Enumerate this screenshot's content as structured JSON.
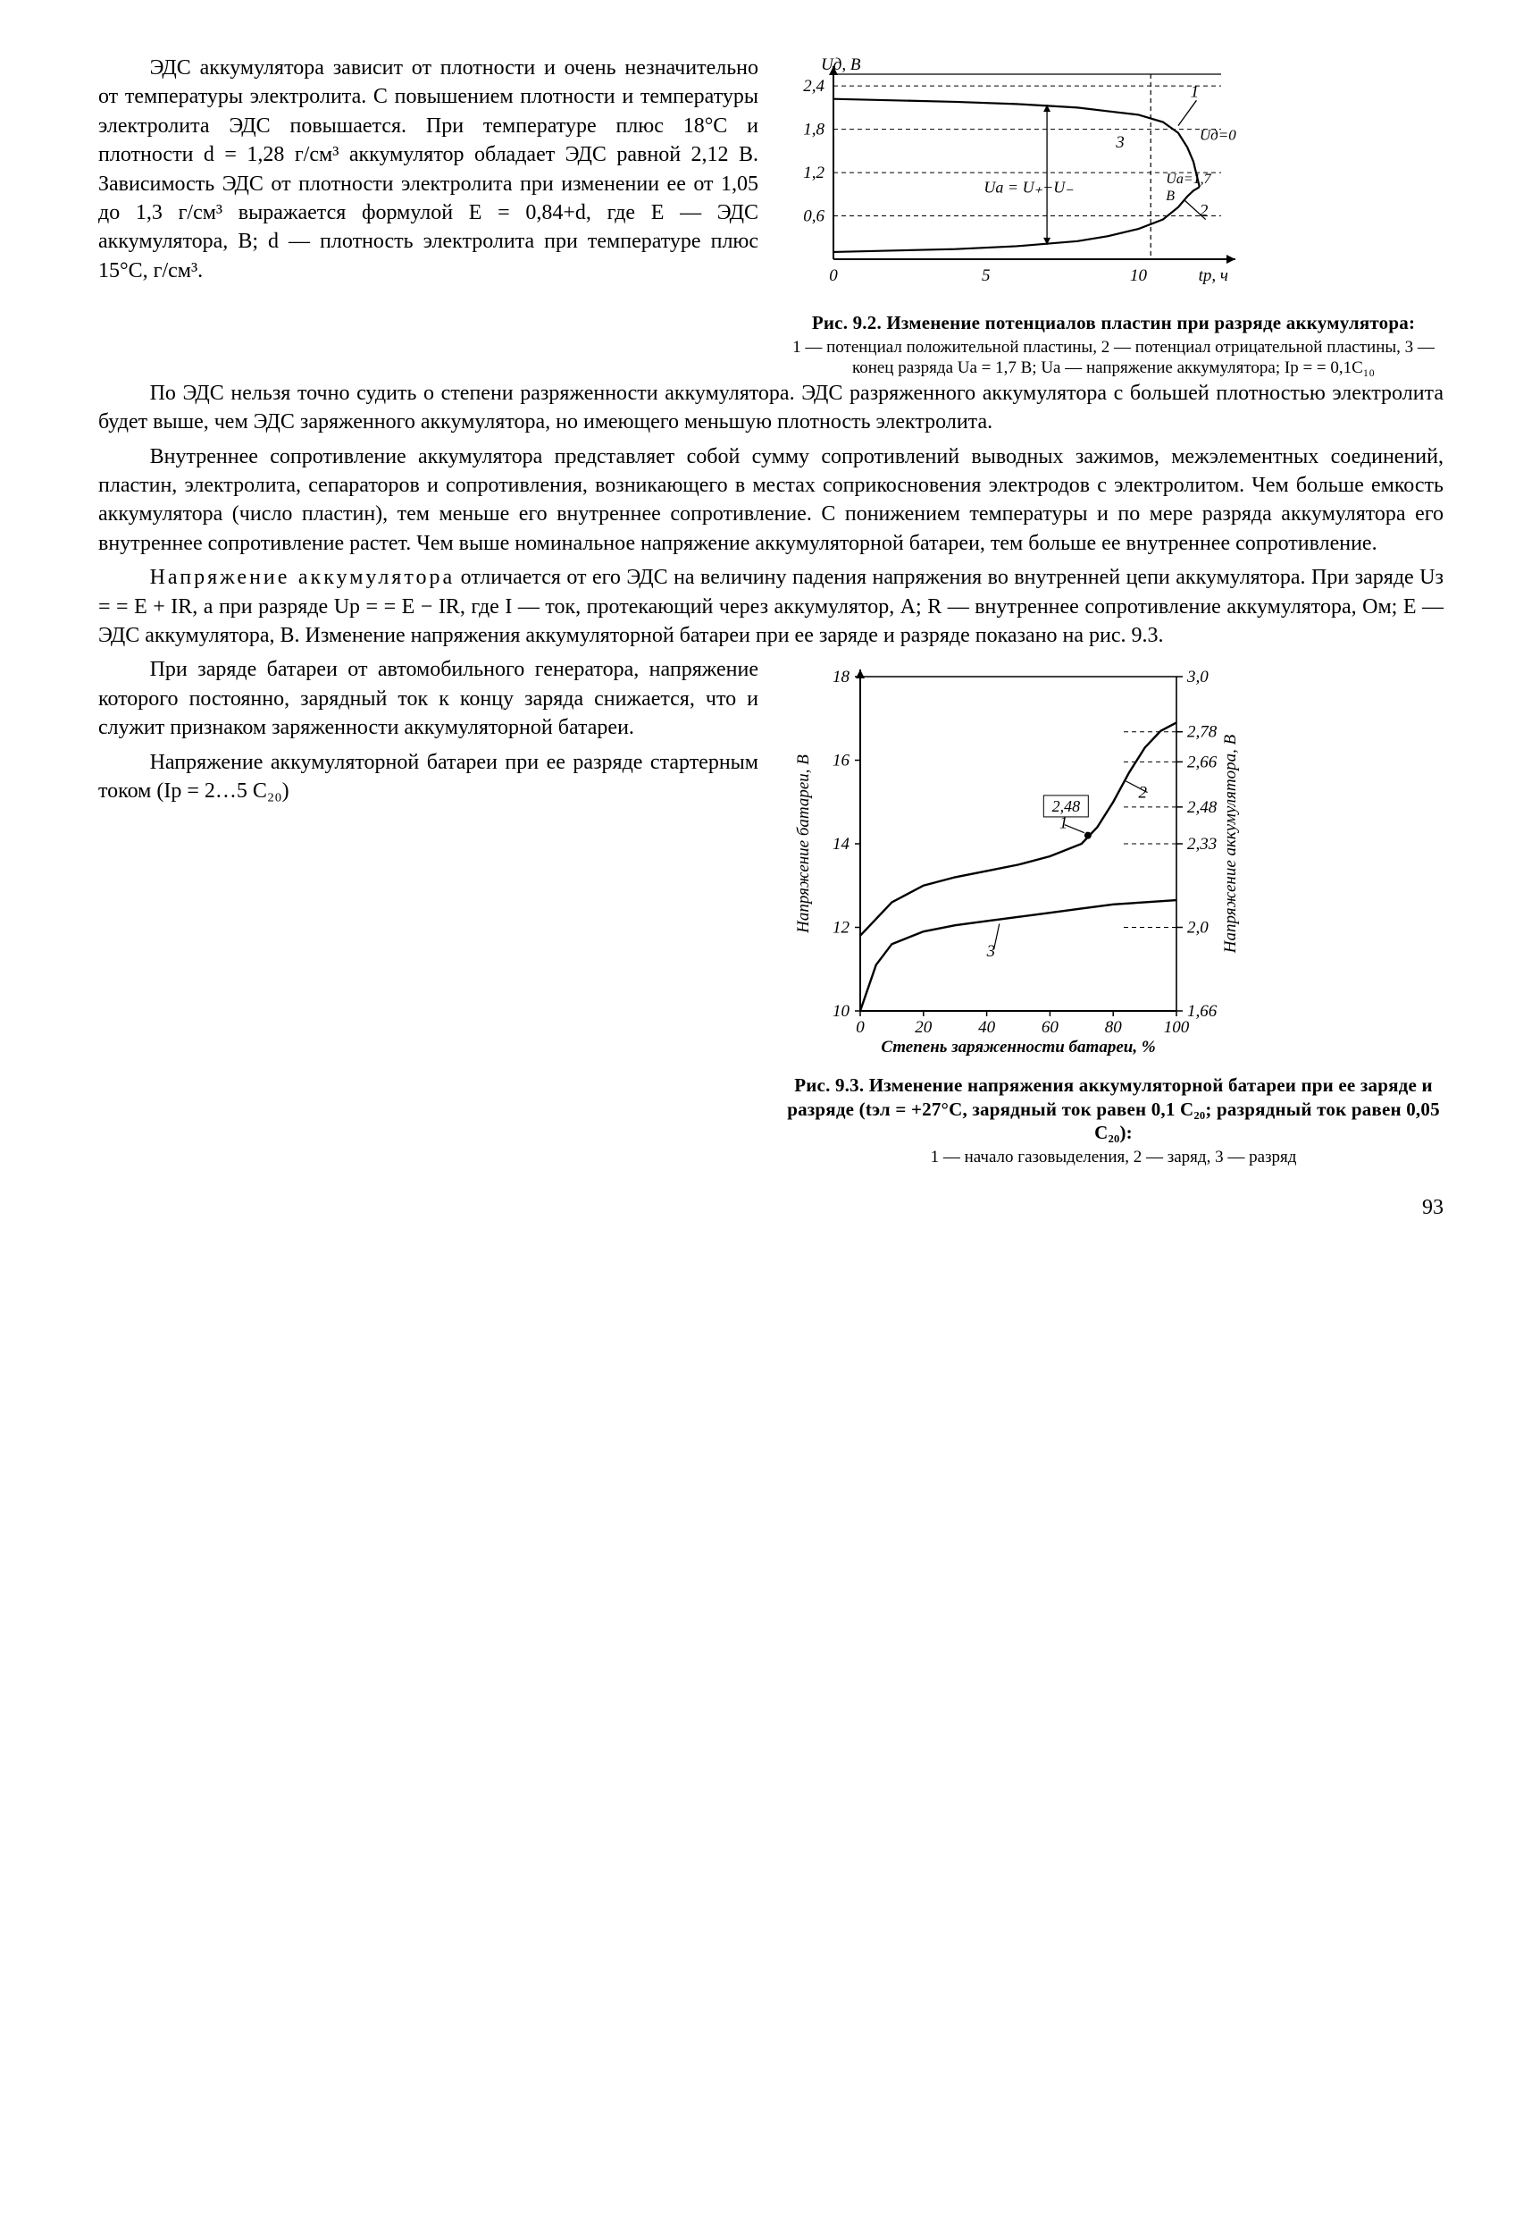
{
  "page_number": "93",
  "text": {
    "p1": "ЭДС аккумулятора зависит от плотности и очень незначительно от температуры электролита. С повышением плотности и тем­пературы электролита ЭДС по­вышается. При температуре плюс 18°С и плотности d = 1,28 г/см³ аккумулятор обладает ЭДС рав­ной 2,12 В. Зависимость ЭДС от плотности электролита при изме­нении ее от 1,05 до 1,3 г/см³ вы­ражается формулой E = 0,84+d, где E — ЭДС аккумулятора, В; d — плотность электролита при температуре плюс 15°С, г/см³.",
    "p2": "По ЭДС нельзя точно судить о степени разряженности ак­кумулятора. ЭДС разряженного аккумулятора с большей плот­ностью электролита будет выше, чем ЭДС заряженного акку­мулятора, но имеющего меньшую плотность электролита.",
    "p3": "Внутреннее сопротивление аккумулятора представляет собой сумму сопротивлений выводных зажимов, межэлементных соеди­нений, пластин, электролита, сепараторов и сопротивления, воз­никающего в местах соприкосновения электродов с электро­литом. Чем больше емкость аккумулятора (число пластин), тем меньше его внутреннее сопротивление. С понижением темпера­туры и по мере разряда аккумулятора его внутреннее сопротив­ление растет. Чем выше номинальное напряжение аккумулятор­ной батареи, тем больше ее внутреннее сопротивление.",
    "p4a": "Напряжение аккумулятора",
    "p4b": " отличается от его ЭДС на величину падения напряжения во внутренней цепи ак­кумулятора. При заряде Uз = = E + IR, а при разряде Uр = = E − IR, где I — ток, протекаю­щий через аккумулятор, А; R — внутреннее сопротивление акку­мулятора, Ом; E — ЭДС аккуму­лятора, В. Изменение напряже­ния аккумуляторной батареи при ее заряде и разряде показано на рис. 9.3.",
    "p5": "При заряде батареи от авто­мобильного генератора, напряже­ние которого постоянно, зарядный ток к концу заряда снижается, что и служит признаком заряжен­ности аккумуляторной батареи.",
    "p6": "Напряжение аккумуляторной батареи при ее разряде стар­терным током (Iр = 2…5 C₂₀)"
  },
  "fig92": {
    "title": "Рис. 9.2. Изменение потенциалов пластин при разряде аккумулятора:",
    "legend": "1 — потенциал положительной пласти­ны, 2 — потенциал отрицательной пла­стины, 3 — конец разряда Uа = 1,7 В; Uа — напряжение аккумулятора; Iр = = 0,1C₁₀",
    "y_axis_label": "Uд, В",
    "x_axis_label": "tр, ч",
    "y_ticks": [
      "0,6",
      "1,2",
      "1,8",
      "2,4"
    ],
    "x_ticks": [
      "0",
      "5",
      "10"
    ],
    "annotations": {
      "ua_eq": "Uа = U₊−U₋",
      "ua_zero": "Uд = 0",
      "ua_mark": "Uа=1,7В"
    },
    "curve_colors": {
      "line": "#000000",
      "bg": "#ffffff"
    },
    "curve1": [
      [
        0,
        2.22
      ],
      [
        2,
        2.2
      ],
      [
        4,
        2.18
      ],
      [
        6,
        2.15
      ],
      [
        8,
        2.1
      ],
      [
        9,
        2.05
      ],
      [
        10,
        2.0
      ],
      [
        10.8,
        1.9
      ],
      [
        11.3,
        1.75
      ],
      [
        11.6,
        1.55
      ],
      [
        11.8,
        1.35
      ],
      [
        12.0,
        1.0
      ]
    ],
    "curve2": [
      [
        0,
        0.1
      ],
      [
        2,
        0.12
      ],
      [
        4,
        0.14
      ],
      [
        6,
        0.18
      ],
      [
        8,
        0.25
      ],
      [
        9,
        0.32
      ],
      [
        10,
        0.42
      ],
      [
        10.8,
        0.55
      ],
      [
        11.3,
        0.72
      ],
      [
        11.6,
        0.87
      ],
      [
        11.8,
        0.95
      ],
      [
        12.0,
        1.0
      ]
    ],
    "xlim": [
      0,
      13
    ],
    "ylim": [
      0,
      2.6
    ],
    "line_width": 2.2,
    "dash_pattern": "5 4",
    "font_size": 19
  },
  "fig93": {
    "title": "Рис. 9.3. Изменение напряжения аккумуляторной батареи при ее заряде и разряде (tэл = +27°С, зарядный ток равен 0,1 C₂₀; разряд­ный ток равен 0,05 C₂₀):",
    "legend": "1 — начало газовыделения, 2 — заряд, 3 — разряд",
    "x_label": "Степень заряженности батареи, %",
    "y_left_label": "Напряжение батареи, В",
    "y_right_label": "Напряжение аккумулятора, В",
    "x_ticks": [
      "0",
      "20",
      "40",
      "60",
      "80",
      "100"
    ],
    "y_left_ticks": [
      "10",
      "12",
      "14",
      "16",
      "18"
    ],
    "y_right_vals": [
      "1,66",
      "2,0",
      "2,33",
      "2,48",
      "2,66",
      "2,78",
      "3,0"
    ],
    "curve_charge": [
      [
        0,
        11.8
      ],
      [
        10,
        12.6
      ],
      [
        20,
        13.0
      ],
      [
        30,
        13.2
      ],
      [
        40,
        13.35
      ],
      [
        50,
        13.5
      ],
      [
        60,
        13.7
      ],
      [
        70,
        14.0
      ],
      [
        75,
        14.4
      ],
      [
        80,
        15.0
      ],
      [
        85,
        15.7
      ],
      [
        90,
        16.3
      ],
      [
        95,
        16.7
      ],
      [
        100,
        16.9
      ]
    ],
    "curve_discharge": [
      [
        0,
        10.0
      ],
      [
        5,
        11.1
      ],
      [
        10,
        11.6
      ],
      [
        20,
        11.9
      ],
      [
        30,
        12.05
      ],
      [
        40,
        12.15
      ],
      [
        50,
        12.25
      ],
      [
        60,
        12.35
      ],
      [
        70,
        12.45
      ],
      [
        80,
        12.55
      ],
      [
        90,
        12.6
      ],
      [
        100,
        12.65
      ]
    ],
    "xlim": [
      0,
      100
    ],
    "ylim": [
      10,
      18
    ],
    "line_width": 2.4,
    "colors": {
      "line": "#000000",
      "bg": "#ffffff"
    },
    "gas_point": [
      72,
      14.2
    ],
    "right_tick_y": [
      10,
      12,
      14,
      14.88,
      15.96,
      16.68,
      18
    ],
    "font_size": 19
  }
}
